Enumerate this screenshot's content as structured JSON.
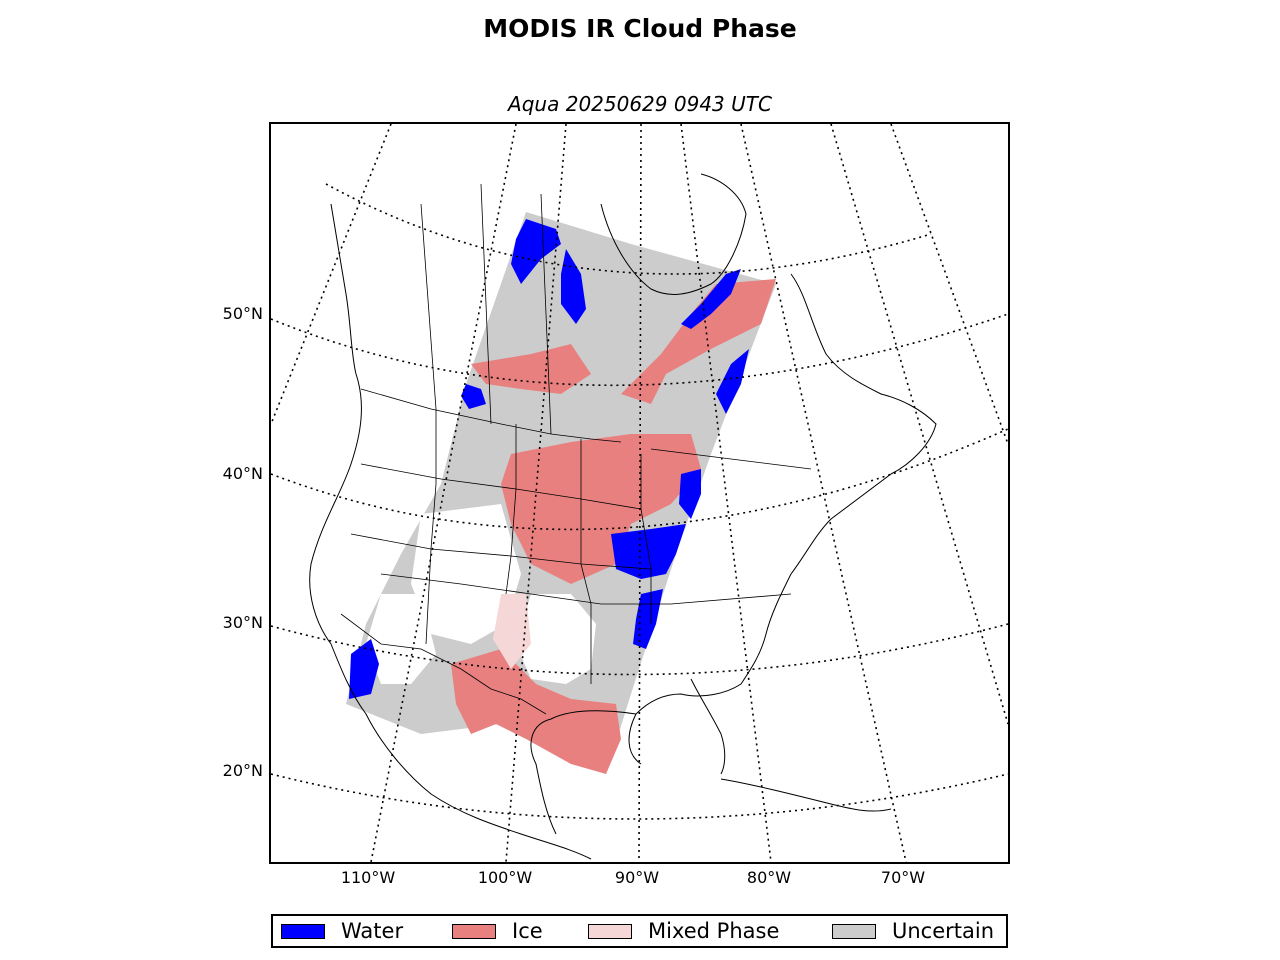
{
  "title": "MODIS IR Cloud Phase",
  "subtitle": "Aqua 20250629 0943 UTC",
  "map": {
    "type": "polar-stereographic-map",
    "region": "North America",
    "graticule_style": "dotted",
    "lat_labels": [
      "50°N",
      "40°N",
      "30°N",
      "20°N"
    ],
    "lon_labels": [
      "110°W",
      "100°W",
      "90°W",
      "80°W",
      "70°W"
    ],
    "land_fill": "#ffffff",
    "coastline_color": "#000000"
  },
  "legend": {
    "items": [
      {
        "label": "Water",
        "color": "#0000ff"
      },
      {
        "label": "Ice",
        "color": "#e88080"
      },
      {
        "label": "Mixed Phase",
        "color": "#f5d7d7"
      },
      {
        "label": "Uncertain",
        "color": "#cccccc"
      }
    ]
  },
  "chart_data": {
    "type": "heatmap",
    "title": "MODIS IR Cloud Phase",
    "subtitle": "Aqua 20250629 0943 UTC",
    "categories": [
      "Water",
      "Ice",
      "Mixed Phase",
      "Uncertain"
    ],
    "colors": [
      "#0000ff",
      "#e88080",
      "#f5d7d7",
      "#cccccc"
    ],
    "legend_position": "bottom"
  }
}
